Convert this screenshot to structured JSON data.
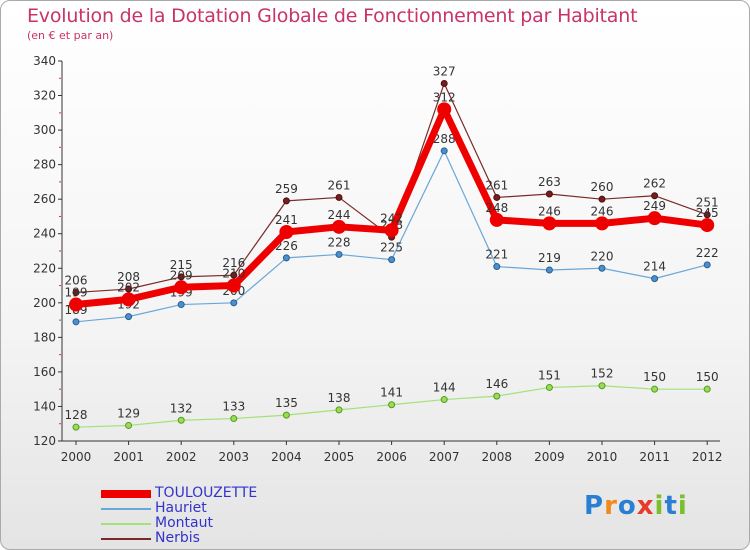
{
  "chart_data": {
    "type": "line",
    "title": "Evolution de la Dotation Globale de Fonctionnement par Habitant",
    "subtitle": "(en € et par an)",
    "xlabel": "",
    "ylabel": "",
    "ylim": [
      120,
      340
    ],
    "yticks": [
      120,
      140,
      160,
      180,
      200,
      220,
      240,
      260,
      280,
      300,
      320,
      340
    ],
    "categories": [
      "2000",
      "2001",
      "2002",
      "2003",
      "2004",
      "2005",
      "2006",
      "2007",
      "2008",
      "2009",
      "2010",
      "2011",
      "2012"
    ],
    "series": [
      {
        "name": "TOULOUZETTE",
        "color": "#ee0000",
        "values": [
          199,
          202,
          209,
          210,
          241,
          244,
          242,
          312,
          248,
          246,
          246,
          249,
          245
        ]
      },
      {
        "name": "Hauriet",
        "color": "#5599cc",
        "values": [
          189,
          192,
          199,
          200,
          226,
          228,
          225,
          288,
          221,
          219,
          220,
          214,
          222
        ]
      },
      {
        "name": "Montaut",
        "color": "#99dd66",
        "values": [
          128,
          129,
          132,
          133,
          135,
          138,
          141,
          144,
          146,
          151,
          152,
          150,
          150
        ]
      },
      {
        "name": "Nerbis",
        "color": "#772222",
        "values": [
          206,
          208,
          215,
          216,
          259,
          261,
          238,
          327,
          261,
          263,
          260,
          262,
          251
        ]
      }
    ],
    "legend_position": "bottom-left",
    "grid": false
  },
  "logo": {
    "text": "Proxiti",
    "letters": [
      "P",
      "r",
      "o",
      "x",
      "i",
      "t",
      "i"
    ],
    "colors": [
      "#2a7fd4",
      "#f08a1c",
      "#2a7fd4",
      "#e83a2a",
      "#7bbf2a",
      "#2a7fd4",
      "#7bbf2a"
    ]
  }
}
